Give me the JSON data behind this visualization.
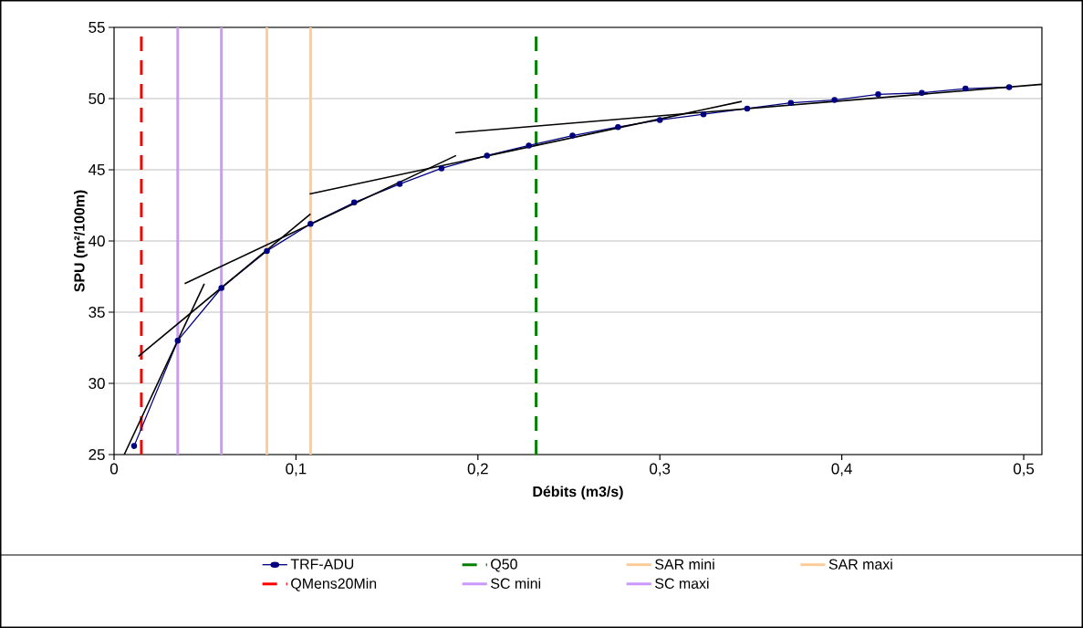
{
  "chart_data": {
    "type": "line",
    "xlabel": "Débits (m3/s)",
    "ylabel": "SPU (m²/100m)",
    "xlim": [
      0,
      0.51
    ],
    "ylim": [
      25,
      55
    ],
    "xticks": [
      0,
      {
        "value": 0.1,
        "label": "0,1"
      },
      {
        "value": 0.2,
        "label": "0,2"
      },
      {
        "value": 0.3,
        "label": "0,3"
      },
      {
        "value": 0.4,
        "label": "0,4"
      },
      {
        "value": 0.5,
        "label": "0,5"
      }
    ],
    "yticks": [
      25,
      30,
      35,
      40,
      45,
      50,
      55
    ],
    "grid": "y",
    "legend": "bottom",
    "series": [
      {
        "name": "TRF-ADU",
        "color": "#000080",
        "marker": "circle",
        "line_style": "solid",
        "x": [
          0.011,
          0.035,
          0.059,
          0.084,
          0.108,
          0.132,
          0.157,
          0.18,
          0.205,
          0.228,
          0.252,
          0.277,
          0.3,
          0.324,
          0.348,
          0.372,
          0.396,
          0.42,
          0.444,
          0.468,
          0.492
        ],
        "values": [
          25.6,
          33.0,
          36.7,
          39.3,
          41.2,
          42.7,
          44.0,
          45.1,
          46.0,
          46.7,
          47.4,
          48.0,
          48.5,
          48.9,
          49.3,
          49.7,
          49.9,
          50.3,
          50.4,
          50.7,
          50.8
        ]
      },
      {
        "color": "#000000",
        "marker": "none",
        "line_style": "solid",
        "x": [
          0.0056,
          0.0496
        ],
        "values": [
          25.0,
          37.0
        ]
      },
      {
        "color": "#000000",
        "marker": "none",
        "line_style": "solid",
        "x": [
          0.0134,
          0.108
        ],
        "values": [
          31.9,
          41.9
        ]
      },
      {
        "color": "#000000",
        "marker": "none",
        "line_style": "solid",
        "x": [
          0.0388,
          0.188
        ],
        "values": [
          37.0,
          46.0
        ]
      },
      {
        "color": "#000000",
        "marker": "none",
        "line_style": "solid",
        "x": [
          0.1075,
          0.345
        ],
        "values": [
          43.3,
          49.8
        ]
      },
      {
        "color": "#000000",
        "marker": "none",
        "line_style": "solid",
        "x": [
          0.1876,
          0.51
        ],
        "values": [
          47.6,
          51.0
        ]
      }
    ],
    "ref_lines": [
      {
        "axis": "x",
        "value": 0.232,
        "label": "Q50",
        "color": "#008000",
        "line_style": "dashed"
      },
      {
        "axis": "x",
        "value": 0.084,
        "label": "SAR mini",
        "color": "#ffcc99",
        "line_style": "solid"
      },
      {
        "axis": "x",
        "value": 0.108,
        "label": "SAR maxi",
        "color": "#ffcc99",
        "line_style": "solid"
      },
      {
        "axis": "x",
        "value": 0.015,
        "label": "QMens20Min",
        "color": "#ff0000",
        "line_style": "dashed"
      },
      {
        "axis": "x",
        "value": 0.035,
        "label": "SC mini",
        "color": "#cc99ff",
        "line_style": "solid"
      },
      {
        "axis": "x",
        "value": 0.059,
        "label": "SC maxi",
        "color": "#cc99ff",
        "line_style": "solid"
      }
    ]
  }
}
